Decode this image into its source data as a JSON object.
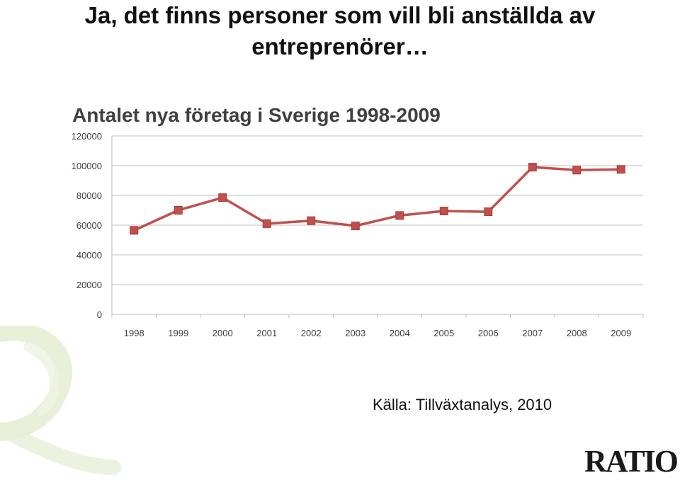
{
  "slide": {
    "title_line1": "Ja, det finns personer som vill bli anställda av",
    "title_line2": "entreprenörer…",
    "source": "Källa: Tillväxtanalys, 2010",
    "logo": "RATIO"
  },
  "colors": {
    "series": "#c0504d",
    "marker": "#c0504d",
    "grid": "#bfbfbf",
    "axis_text": "#404040",
    "watermark": "#dfe9c6"
  },
  "chart_data": {
    "type": "line",
    "title": "Antalet nya företag i Sverige 1998-2009",
    "xlabel": "",
    "ylabel": "",
    "categories": [
      "1998",
      "1999",
      "2000",
      "2001",
      "2002",
      "2003",
      "2004",
      "2005",
      "2006",
      "2007",
      "2008",
      "2009"
    ],
    "series": [
      {
        "values": [
          56500,
          70000,
          78500,
          61000,
          63000,
          59500,
          66500,
          69500,
          69000,
          99000,
          97000,
          97500
        ]
      }
    ],
    "ylim": [
      0,
      120000
    ],
    "yticks": [
      0,
      20000,
      40000,
      60000,
      80000,
      100000,
      120000
    ],
    "ytick_labels": [
      "0",
      "20000",
      "40000",
      "60000",
      "80000",
      "100000",
      "120000"
    ],
    "grid": true,
    "legend": "none"
  }
}
